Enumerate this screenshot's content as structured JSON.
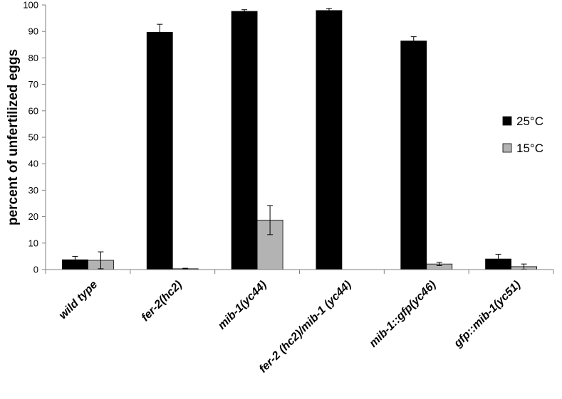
{
  "chart_data": {
    "type": "bar",
    "title": "",
    "xlabel": "",
    "ylabel": "percent of unfertilized eggs",
    "ylim": [
      0,
      100
    ],
    "yticks": [
      "0",
      "10",
      "20",
      "30",
      "40",
      "50",
      "60",
      "70",
      "80",
      "90",
      "100"
    ],
    "categories": [
      "wild type",
      "fer-2(hc2)",
      "mib-1(yc44)",
      "fer-2 (hc2)/mib-1 (yc44)",
      "mib-1::gfp(yc46)",
      "gfp::mib-1(yc51)"
    ],
    "series": [
      {
        "name": "25°C",
        "color": "#000000",
        "values": [
          3.7,
          89.7,
          97.6,
          97.9,
          86.4,
          4.0
        ],
        "errors": [
          1.3,
          3.0,
          0.6,
          0.8,
          1.6,
          1.8
        ]
      },
      {
        "name": "15°C",
        "color": "#b3b3b3",
        "values": [
          3.5,
          0.3,
          18.7,
          0.0,
          2.1,
          1.1
        ],
        "errors": [
          3.2,
          0.2,
          5.5,
          0.0,
          0.6,
          1.0
        ]
      }
    ],
    "grid": false,
    "legend_position": "right"
  }
}
